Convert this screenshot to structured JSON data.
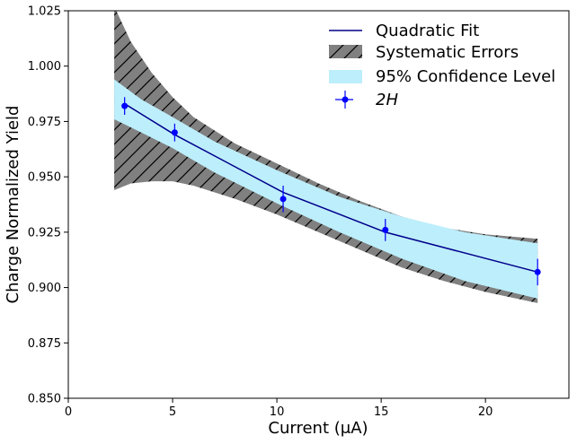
{
  "chart_data": {
    "type": "line",
    "xlabel": "Current (μA)",
    "ylabel": "Charge Normalized Yield",
    "xlim": [
      0,
      24
    ],
    "ylim": [
      0.85,
      1.025
    ],
    "xticks": [
      0,
      5,
      10,
      15,
      20
    ],
    "xtick_labels": [
      "0",
      "5",
      "10",
      "15",
      "20"
    ],
    "yticks": [
      0.85,
      0.875,
      0.9,
      0.925,
      0.95,
      0.975,
      1.0,
      1.025
    ],
    "ytick_labels": [
      "0.850",
      "0.875",
      "0.900",
      "0.925",
      "0.950",
      "0.975",
      "1.000",
      "1.025"
    ],
    "grid": false,
    "legend_position": "top-right",
    "legend": {
      "fit": "Quadratic Fit",
      "systematic": "Systematic Errors",
      "confidence": "95% Confidence Level",
      "data": "2H"
    },
    "colors": {
      "fit": "#00008b",
      "data": "#0000ff",
      "confidence": "#bdeefb",
      "systematic": "#808080",
      "hatch": "#000000"
    },
    "data_points": {
      "x": [
        2.7,
        5.1,
        10.3,
        15.2,
        22.5
      ],
      "y": [
        0.982,
        0.97,
        0.94,
        0.926,
        0.907
      ],
      "yerr": [
        0.004,
        0.004,
        0.006,
        0.005,
        0.006
      ]
    },
    "fit_line": {
      "x": [
        2.7,
        5.1,
        10.3,
        15.2,
        22.5
      ],
      "y": [
        0.983,
        0.969,
        0.943,
        0.925,
        0.907
      ]
    },
    "confidence_band": {
      "x": [
        2.2,
        3.5,
        5.0,
        7.0,
        10.0,
        13.0,
        16.0,
        19.0,
        22.5
      ],
      "upper": [
        0.994,
        0.985,
        0.977,
        0.966,
        0.953,
        0.941,
        0.932,
        0.925,
        0.92
      ],
      "lower": [
        0.976,
        0.97,
        0.963,
        0.952,
        0.938,
        0.925,
        0.913,
        0.903,
        0.895
      ]
    },
    "systematic_band": {
      "x": [
        2.2,
        3.0,
        4.0,
        5.0,
        6.0,
        8.0,
        10.0,
        12.0,
        14.0,
        16.0,
        18.0,
        20.0,
        22.5
      ],
      "upper": [
        1.027,
        1.011,
        0.997,
        0.986,
        0.977,
        0.965,
        0.956,
        0.947,
        0.939,
        0.932,
        0.927,
        0.924,
        0.922
      ],
      "lower": [
        0.944,
        0.947,
        0.948,
        0.948,
        0.946,
        0.94,
        0.933,
        0.925,
        0.917,
        0.909,
        0.903,
        0.898,
        0.893
      ]
    }
  }
}
